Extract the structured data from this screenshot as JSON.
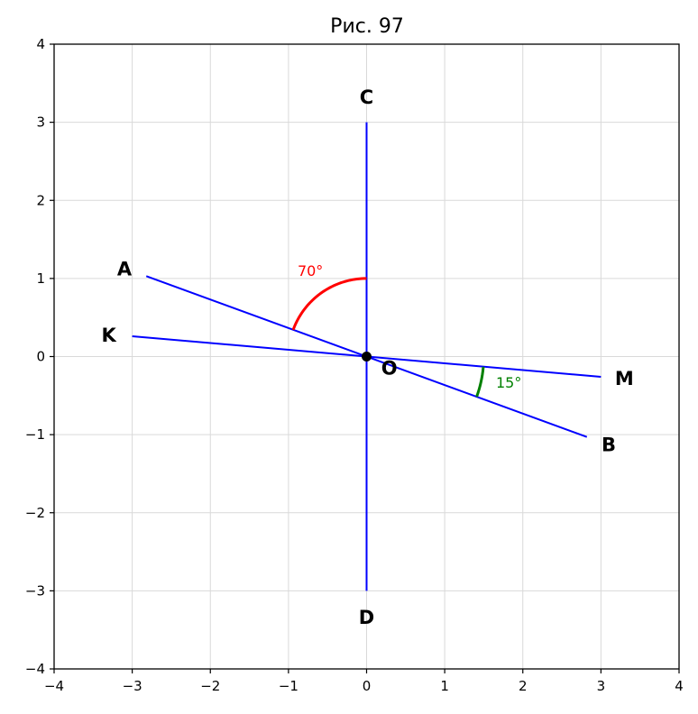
{
  "title": "Рис. 97",
  "colors": {
    "line": "#0000ff",
    "angle_red": "#ff0000",
    "angle_green": "#008000",
    "grid": "#d9d9d9"
  },
  "axes": {
    "xlim": [
      -4,
      4
    ],
    "ylim": [
      -4,
      4
    ],
    "grid": true,
    "x_ticks": [
      {
        "v": -4,
        "label": "−4"
      },
      {
        "v": -3,
        "label": "−3"
      },
      {
        "v": -2,
        "label": "−2"
      },
      {
        "v": -1,
        "label": "−1"
      },
      {
        "v": 0,
        "label": "0"
      },
      {
        "v": 1,
        "label": "1"
      },
      {
        "v": 2,
        "label": "2"
      },
      {
        "v": 3,
        "label": "3"
      },
      {
        "v": 4,
        "label": "4"
      }
    ],
    "y_ticks": [
      {
        "v": -4,
        "label": "−4"
      },
      {
        "v": -3,
        "label": "−3"
      },
      {
        "v": -2,
        "label": "−2"
      },
      {
        "v": -1,
        "label": "−1"
      },
      {
        "v": 0,
        "label": "0"
      },
      {
        "v": 1,
        "label": "1"
      },
      {
        "v": 2,
        "label": "2"
      },
      {
        "v": 3,
        "label": "3"
      },
      {
        "v": 4,
        "label": "4"
      }
    ]
  },
  "segments": [
    {
      "id": "CD",
      "from": [
        0,
        3
      ],
      "to": [
        0,
        -3
      ]
    },
    {
      "id": "AB",
      "from": [
        -2.82,
        1.03
      ],
      "to": [
        2.82,
        -1.03
      ]
    },
    {
      "id": "KM",
      "from": [
        -3.0,
        0.26
      ],
      "to": [
        3.0,
        -0.26
      ]
    }
  ],
  "points": [
    {
      "label": "C",
      "x": 0,
      "y": 3.33
    },
    {
      "label": "D",
      "x": 0,
      "y": -3.33
    },
    {
      "label": "A",
      "x": -3.1,
      "y": 1.13
    },
    {
      "label": "B",
      "x": 3.1,
      "y": -1.12
    },
    {
      "label": "K",
      "x": -3.3,
      "y": 0.28
    },
    {
      "label": "M",
      "x": 3.3,
      "y": -0.27
    },
    {
      "label": "O",
      "x": 0.29,
      "y": -0.14
    }
  ],
  "center": {
    "x": 0,
    "y": 0
  },
  "angles": [
    {
      "label": "70°",
      "color": "red",
      "radius": 1.0,
      "from_deg": 90,
      "to_deg": 160,
      "text_x": -0.72,
      "text_y": 1.1
    },
    {
      "label": "15°",
      "color": "green",
      "radius": 1.5,
      "from_deg": -20,
      "to_deg": -5,
      "text_x": 1.82,
      "text_y": -0.33
    }
  ]
}
